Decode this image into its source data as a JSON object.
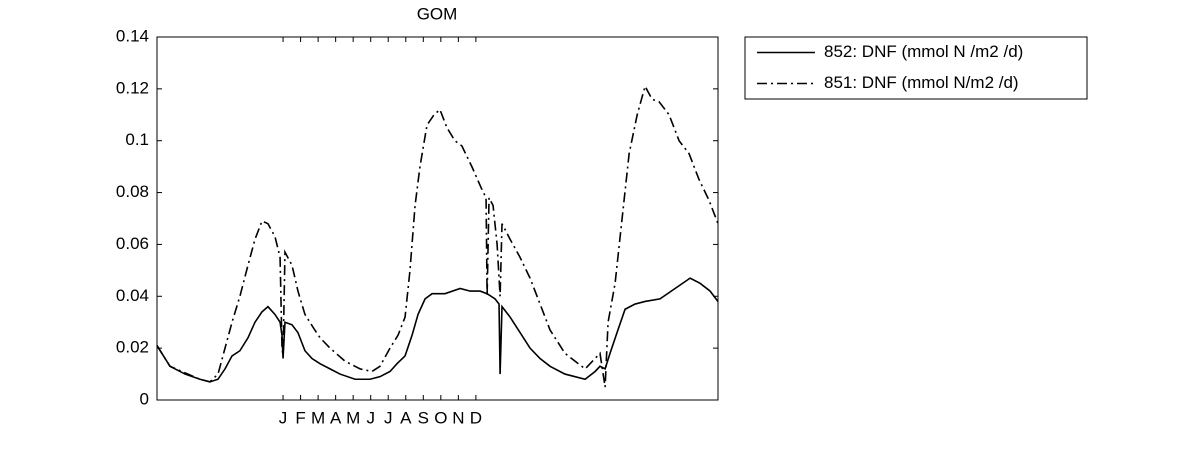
{
  "chart_data": {
    "type": "line",
    "title": "GOM",
    "xlim": [
      0,
      32
    ],
    "ylim": [
      0,
      0.14
    ],
    "yticks": [
      0,
      0.02,
      0.04,
      0.06,
      0.08,
      0.1,
      0.12,
      0.14
    ],
    "xticks": [
      {
        "value": 7.19,
        "label": "J"
      },
      {
        "value": 8.19,
        "label": "F"
      },
      {
        "value": 9.19,
        "label": "M"
      },
      {
        "value": 10.19,
        "label": "A"
      },
      {
        "value": 11.19,
        "label": "M"
      },
      {
        "value": 12.19,
        "label": "J"
      },
      {
        "value": 13.19,
        "label": "J"
      },
      {
        "value": 14.19,
        "label": "A"
      },
      {
        "value": 15.19,
        "label": "S"
      },
      {
        "value": 16.19,
        "label": "O"
      },
      {
        "value": 17.19,
        "label": "N"
      },
      {
        "value": 18.19,
        "label": "D"
      }
    ],
    "legend": "outside-top-right",
    "series": [
      {
        "name": "852: DNF (mmol N /m2 /d)",
        "color": "#000000",
        "dash": "solid",
        "x": [
          0,
          0.74,
          1.6,
          2.45,
          3.02,
          3.48,
          3.88,
          4.28,
          4.73,
          5.19,
          5.59,
          5.99,
          6.33,
          6.73,
          7.02,
          7.13,
          7.19,
          7.3,
          7.7,
          8.04,
          8.44,
          8.84,
          9.3,
          9.87,
          10.44,
          11.3,
          12.15,
          12.72,
          13.29,
          13.69,
          14.15,
          14.55,
          14.89,
          15.29,
          15.69,
          16.43,
          17.29,
          17.86,
          18.43,
          18.83,
          19.28,
          19.51,
          19.57,
          19.68,
          20.14,
          20.71,
          21.28,
          21.85,
          22.42,
          23.27,
          24.42,
          24.99,
          25.27,
          25.56,
          25.84,
          26.24,
          26.7,
          27.27,
          27.84,
          28.69,
          29.55,
          30.41,
          30.98,
          31.55,
          32
        ],
        "values": [
          0.021,
          0.013,
          0.01,
          0.008,
          0.007,
          0.008,
          0.012,
          0.017,
          0.019,
          0.024,
          0.03,
          0.034,
          0.036,
          0.033,
          0.03,
          0.025,
          0.016,
          0.03,
          0.029,
          0.026,
          0.019,
          0.016,
          0.014,
          0.012,
          0.01,
          0.008,
          0.008,
          0.009,
          0.011,
          0.014,
          0.017,
          0.025,
          0.033,
          0.039,
          0.041,
          0.041,
          0.043,
          0.042,
          0.042,
          0.041,
          0.039,
          0.037,
          0.01,
          0.036,
          0.032,
          0.026,
          0.02,
          0.016,
          0.013,
          0.01,
          0.008,
          0.011,
          0.013,
          0.012,
          0.018,
          0.026,
          0.035,
          0.037,
          0.038,
          0.039,
          0.043,
          0.047,
          0.045,
          0.042,
          0.038
        ]
      },
      {
        "name": "851: DNF (mmol N/m2 /d)",
        "color": "#000000",
        "dash": "dashdot",
        "x": [
          0,
          0.74,
          2.45,
          3.02,
          3.48,
          3.88,
          4.28,
          4.73,
          5.19,
          5.59,
          5.99,
          6.33,
          6.73,
          7.02,
          7.13,
          7.19,
          7.3,
          7.7,
          8.04,
          8.44,
          9.0,
          9.3,
          9.87,
          10.72,
          11.58,
          12.26,
          12.72,
          13.29,
          13.75,
          14.15,
          14.43,
          14.72,
          15.0,
          15.4,
          15.8,
          16.14,
          16.54,
          16.99,
          17.39,
          17.96,
          18.48,
          18.77,
          18.83,
          18.94,
          19.17,
          19.4,
          19.57,
          19.68,
          20.14,
          20.71,
          21.28,
          21.85,
          22.42,
          23.27,
          24.42,
          25.27,
          25.56,
          25.73,
          26.13,
          26.53,
          26.93,
          27.39,
          27.84,
          28.24,
          28.64,
          29.21,
          29.78,
          30.35,
          30.92,
          31.49,
          32
        ],
        "values": [
          0.021,
          0.013,
          0.008,
          0.007,
          0.01,
          0.02,
          0.03,
          0.04,
          0.052,
          0.062,
          0.069,
          0.068,
          0.063,
          0.055,
          0.02,
          0.017,
          0.057,
          0.052,
          0.042,
          0.033,
          0.027,
          0.024,
          0.02,
          0.015,
          0.012,
          0.011,
          0.013,
          0.02,
          0.025,
          0.032,
          0.05,
          0.075,
          0.09,
          0.106,
          0.11,
          0.112,
          0.105,
          0.1,
          0.098,
          0.09,
          0.082,
          0.078,
          0.04,
          0.078,
          0.075,
          0.06,
          0.04,
          0.068,
          0.062,
          0.055,
          0.047,
          0.037,
          0.027,
          0.018,
          0.012,
          0.018,
          0.005,
          0.03,
          0.045,
          0.07,
          0.095,
          0.11,
          0.121,
          0.116,
          0.115,
          0.11,
          0.1,
          0.095,
          0.085,
          0.077,
          0.068
        ]
      }
    ]
  }
}
